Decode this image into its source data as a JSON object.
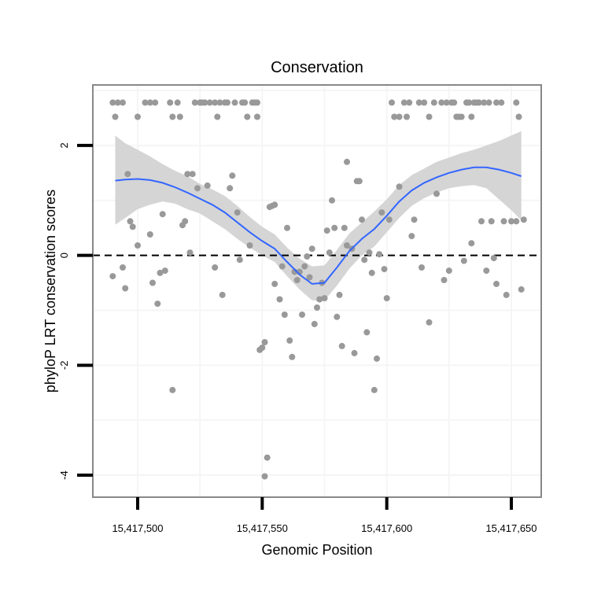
{
  "chart_data": {
    "type": "scatter",
    "title": "Conservation",
    "xlabel": "Genomic Position",
    "ylabel": "phyloP LRT conservation scores",
    "xlim": [
      15417482,
      15417662
    ],
    "ylim": [
      -4.4,
      3.1
    ],
    "x_ticks": [
      15417500,
      15417550,
      15417600,
      15417650
    ],
    "x_tick_labels": [
      "15,417,500",
      "15,417,550",
      "15,417,600",
      "15,417,650"
    ],
    "y_ticks": [
      -4,
      -2,
      0,
      2
    ],
    "y_tick_labels": [
      "-4",
      "-2",
      "0",
      "2"
    ],
    "reference_line_y": 0,
    "grid": true,
    "colors": {
      "points": "#999999",
      "smooth": "#3366ff",
      "ribbon": "#d3d3d3",
      "grid": "#f5f5f5",
      "panel_border": "#888888"
    },
    "points": [
      [
        15417490,
        2.78
      ],
      [
        15417492,
        2.78
      ],
      [
        15417494,
        2.78
      ],
      [
        15417491,
        2.52
      ],
      [
        15417490,
        -0.38
      ],
      [
        15417494,
        -0.22
      ],
      [
        15417495,
        -0.6
      ],
      [
        15417496,
        1.48
      ],
      [
        15417497,
        0.62
      ],
      [
        15417498,
        0.52
      ],
      [
        15417500,
        2.52
      ],
      [
        15417500,
        0.18
      ],
      [
        15417503,
        2.78
      ],
      [
        15417505,
        2.78
      ],
      [
        15417507,
        2.78
      ],
      [
        15417505,
        0.38
      ],
      [
        15417506,
        -0.5
      ],
      [
        15417508,
        -0.88
      ],
      [
        15417509,
        -0.32
      ],
      [
        15417510,
        0.75
      ],
      [
        15417511,
        -0.28
      ],
      [
        15417513,
        2.78
      ],
      [
        15417514,
        2.52
      ],
      [
        15417514,
        -2.45
      ],
      [
        15417516,
        2.78
      ],
      [
        15417517,
        2.52
      ],
      [
        15417518,
        0.55
      ],
      [
        15417519,
        0.62
      ],
      [
        15417520,
        1.48
      ],
      [
        15417521,
        0.05
      ],
      [
        15417522,
        1.48
      ],
      [
        15417523,
        2.78
      ],
      [
        15417525,
        2.78
      ],
      [
        15417524,
        1.22
      ],
      [
        15417526,
        2.78
      ],
      [
        15417527,
        2.78
      ],
      [
        15417528,
        1.27
      ],
      [
        15417529,
        2.78
      ],
      [
        15417531,
        2.78
      ],
      [
        15417531,
        -0.22
      ],
      [
        15417532,
        2.52
      ],
      [
        15417533,
        2.78
      ],
      [
        15417534,
        -0.72
      ],
      [
        15417535,
        2.78
      ],
      [
        15417536,
        2.78
      ],
      [
        15417537,
        1.22
      ],
      [
        15417538,
        1.45
      ],
      [
        15417539,
        2.78
      ],
      [
        15417540,
        0.78
      ],
      [
        15417541,
        -0.08
      ],
      [
        15417542,
        2.78
      ],
      [
        15417544,
        2.52
      ],
      [
        15417543,
        2.78
      ],
      [
        15417545,
        0.18
      ],
      [
        15417546,
        2.78
      ],
      [
        15417547,
        2.78
      ],
      [
        15417548,
        2.52
      ],
      [
        15417548,
        2.78
      ],
      [
        15417549,
        -1.72
      ],
      [
        15417550,
        -1.68
      ],
      [
        15417551,
        -1.58
      ],
      [
        15417552,
        -3.68
      ],
      [
        15417551,
        -4.02
      ],
      [
        15417553,
        0.88
      ],
      [
        15417554,
        0.9
      ],
      [
        15417555,
        0.92
      ],
      [
        15417555,
        -0.52
      ],
      [
        15417557,
        -0.8
      ],
      [
        15417558,
        -0.2
      ],
      [
        15417559,
        -1.08
      ],
      [
        15417560,
        0.5
      ],
      [
        15417561,
        -1.55
      ],
      [
        15417562,
        -1.85
      ],
      [
        15417563,
        -0.3
      ],
      [
        15417564,
        -0.45
      ],
      [
        15417565,
        -0.3
      ],
      [
        15417566,
        -1.08
      ],
      [
        15417567,
        -0.2
      ],
      [
        15417568,
        -0.02
      ],
      [
        15417569,
        -0.4
      ],
      [
        15417570,
        0.12
      ],
      [
        15417571,
        -1.25
      ],
      [
        15417572,
        -0.95
      ],
      [
        15417573,
        -0.8
      ],
      [
        15417574,
        -0.5
      ],
      [
        15417575,
        -0.78
      ],
      [
        15417576,
        0.45
      ],
      [
        15417577,
        0.05
      ],
      [
        15417578,
        1.0
      ],
      [
        15417579,
        0.5
      ],
      [
        15417580,
        -1.12
      ],
      [
        15417581,
        -0.72
      ],
      [
        15417582,
        -1.65
      ],
      [
        15417583,
        0.5
      ],
      [
        15417584,
        0.18
      ],
      [
        15417584,
        1.7
      ],
      [
        15417586,
        0.12
      ],
      [
        15417587,
        -1.78
      ],
      [
        15417588,
        1.35
      ],
      [
        15417589,
        1.35
      ],
      [
        15417590,
        0.65
      ],
      [
        15417591,
        -0.08
      ],
      [
        15417592,
        -1.4
      ],
      [
        15417593,
        0.05
      ],
      [
        15417594,
        -0.32
      ],
      [
        15417595,
        -2.45
      ],
      [
        15417596,
        -1.88
      ],
      [
        15417597,
        0.02
      ],
      [
        15417598,
        0.78
      ],
      [
        15417599,
        -0.25
      ],
      [
        15417600,
        -0.78
      ],
      [
        15417601,
        0.65
      ],
      [
        15417602,
        2.78
      ],
      [
        15417603,
        2.52
      ],
      [
        15417605,
        2.52
      ],
      [
        15417605,
        1.25
      ],
      [
        15417607,
        2.78
      ],
      [
        15417608,
        2.52
      ],
      [
        15417609,
        2.78
      ],
      [
        15417610,
        0.35
      ],
      [
        15417611,
        0.65
      ],
      [
        15417613,
        2.78
      ],
      [
        15417614,
        -0.22
      ],
      [
        15417615,
        2.78
      ],
      [
        15417617,
        2.52
      ],
      [
        15417617,
        -1.22
      ],
      [
        15417619,
        2.78
      ],
      [
        15417620,
        1.12
      ],
      [
        15417622,
        2.78
      ],
      [
        15417623,
        -0.45
      ],
      [
        15417624,
        2.78
      ],
      [
        15417625,
        -0.28
      ],
      [
        15417626,
        2.78
      ],
      [
        15417627,
        2.78
      ],
      [
        15417628,
        2.52
      ],
      [
        15417629,
        2.52
      ],
      [
        15417630,
        2.52
      ],
      [
        15417631,
        -0.1
      ],
      [
        15417632,
        2.78
      ],
      [
        15417633,
        2.78
      ],
      [
        15417634,
        0.22
      ],
      [
        15417634,
        2.52
      ],
      [
        15417635,
        2.78
      ],
      [
        15417636,
        2.78
      ],
      [
        15417637,
        2.78
      ],
      [
        15417638,
        0.62
      ],
      [
        15417639,
        2.78
      ],
      [
        15417640,
        -0.28
      ],
      [
        15417641,
        2.78
      ],
      [
        15417642,
        0.62
      ],
      [
        15417643,
        -0.05
      ],
      [
        15417644,
        2.78
      ],
      [
        15417644,
        -0.52
      ],
      [
        15417646,
        2.78
      ],
      [
        15417647,
        0.62
      ],
      [
        15417648,
        -0.72
      ],
      [
        15417650,
        0.62
      ],
      [
        15417652,
        2.78
      ],
      [
        15417652,
        0.62
      ],
      [
        15417653,
        2.52
      ],
      [
        15417654,
        -0.62
      ],
      [
        15417655,
        0.65
      ]
    ],
    "smooth": {
      "x": [
        15417491,
        15417495,
        15417500,
        15417505,
        15417510,
        15417515,
        15417520,
        15417525,
        15417530,
        15417535,
        15417540,
        15417545,
        15417550,
        15417555,
        15417560,
        15417565,
        15417570,
        15417575,
        15417580,
        15417585,
        15417590,
        15417595,
        15417600,
        15417605,
        15417610,
        15417615,
        15417620,
        15417625,
        15417630,
        15417635,
        15417640,
        15417645,
        15417650,
        15417654
      ],
      "y": [
        1.36,
        1.38,
        1.39,
        1.37,
        1.32,
        1.24,
        1.14,
        1.03,
        0.92,
        0.78,
        0.6,
        0.42,
        0.26,
        0.12,
        -0.12,
        -0.35,
        -0.52,
        -0.5,
        -0.22,
        0.08,
        0.3,
        0.48,
        0.72,
        0.98,
        1.18,
        1.32,
        1.42,
        1.5,
        1.56,
        1.6,
        1.6,
        1.56,
        1.5,
        1.44
      ],
      "lower": [
        0.56,
        0.68,
        0.84,
        0.92,
        0.98,
        0.94,
        0.84,
        0.76,
        0.62,
        0.48,
        0.3,
        0.14,
        0.0,
        -0.12,
        -0.38,
        -0.62,
        -0.82,
        -0.82,
        -0.55,
        -0.24,
        0.0,
        0.16,
        0.42,
        0.68,
        0.9,
        1.04,
        1.14,
        1.22,
        1.26,
        1.28,
        1.22,
        1.02,
        0.82,
        0.64
      ],
      "upper": [
        2.18,
        2.04,
        1.92,
        1.8,
        1.66,
        1.54,
        1.44,
        1.3,
        1.2,
        1.08,
        0.9,
        0.7,
        0.52,
        0.38,
        0.14,
        -0.06,
        -0.2,
        -0.18,
        0.1,
        0.4,
        0.6,
        0.8,
        1.02,
        1.28,
        1.46,
        1.58,
        1.7,
        1.78,
        1.86,
        1.92,
        2.0,
        2.08,
        2.18,
        2.26
      ]
    }
  }
}
